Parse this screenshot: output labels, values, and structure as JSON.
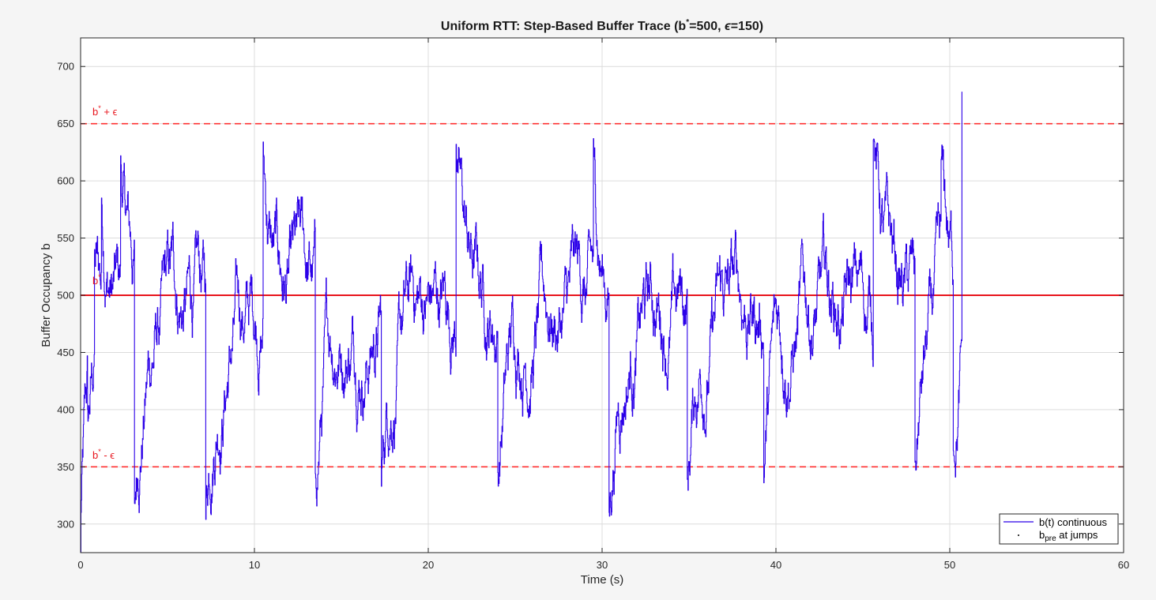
{
  "chart_data": {
    "type": "line",
    "title": {
      "prefix": "Uniform RTT: Step-Based Buffer Trace (b",
      "sup": "*",
      "middle": "=500, ",
      "eps": "ϵ",
      "suffix": "=150)"
    },
    "xlabel": "Time (s)",
    "ylabel": "Buffer Occupancy b",
    "xlim": [
      0,
      60
    ],
    "ylim": [
      275,
      725
    ],
    "x_ticks": [
      0,
      10,
      20,
      30,
      40,
      50,
      60
    ],
    "y_ticks": [
      300,
      350,
      400,
      450,
      500,
      550,
      600,
      650,
      700
    ],
    "grid": true,
    "legend_position": "bottom-right",
    "reference_lines": [
      {
        "y": 650,
        "style": "dashed",
        "color": "#ff3030",
        "label_base": "b",
        "label_sup": "*",
        "label_rest": " + ϵ"
      },
      {
        "y": 500,
        "style": "solid",
        "color": "#e8141c",
        "label_base": "b",
        "label_sup": "*",
        "label_rest": ""
      },
      {
        "y": 350,
        "style": "dashed",
        "color": "#ff3030",
        "label_base": "b",
        "label_sup": "*",
        "label_rest": " - ϵ"
      }
    ],
    "series": [
      {
        "name": "b(t) continuous",
        "color": "#2b00e8",
        "x_end": 50.7,
        "y_start": 275,
        "y_end": 678,
        "y_mean": 488,
        "y_peaks_max": 637,
        "y_troughs_min": 304,
        "notable_points": [
          {
            "x": 0.0,
            "y": 275
          },
          {
            "x": 0.4,
            "y": 400
          },
          {
            "x": 0.8,
            "y": 540
          },
          {
            "x": 1.2,
            "y": 585
          },
          {
            "x": 2.3,
            "y": 622
          },
          {
            "x": 3.1,
            "y": 318
          },
          {
            "x": 7.2,
            "y": 304
          },
          {
            "x": 10.5,
            "y": 634
          },
          {
            "x": 13.5,
            "y": 344
          },
          {
            "x": 17.3,
            "y": 333
          },
          {
            "x": 21.6,
            "y": 632
          },
          {
            "x": 24.0,
            "y": 345
          },
          {
            "x": 29.5,
            "y": 637
          },
          {
            "x": 30.4,
            "y": 310
          },
          {
            "x": 34.9,
            "y": 339
          },
          {
            "x": 39.3,
            "y": 336
          },
          {
            "x": 45.6,
            "y": 636
          },
          {
            "x": 48.0,
            "y": 354
          },
          {
            "x": 49.5,
            "y": 619
          },
          {
            "x": 50.2,
            "y": 364
          },
          {
            "x": 50.7,
            "y": 678
          }
        ]
      },
      {
        "name_base": "b",
        "name_sub": "pre",
        "name_rest": " at jumps",
        "color": "#000000",
        "marker": "dot"
      }
    ]
  }
}
